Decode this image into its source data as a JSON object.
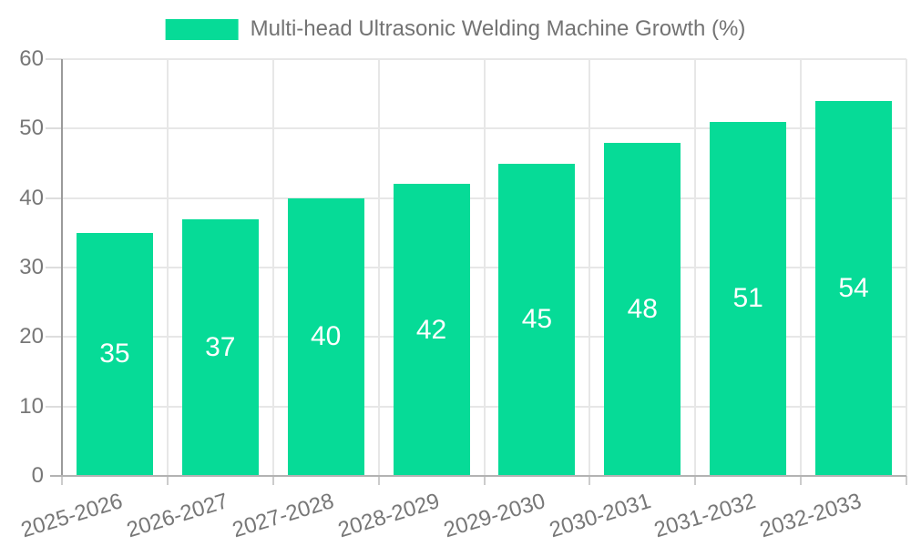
{
  "chart_data": {
    "type": "bar",
    "title": "Multi-head Ultrasonic Welding Machine Growth (%)",
    "categories": [
      "2025-2026",
      "2026-2027",
      "2027-2028",
      "2028-2029",
      "2029-2030",
      "2030-2031",
      "2031-2032",
      "2032-2033"
    ],
    "series": [
      {
        "name": "Multi-head Ultrasonic Welding Machine Growth (%)",
        "values": [
          35,
          37,
          40,
          42,
          45,
          48,
          51,
          54
        ]
      }
    ],
    "xlabel": "",
    "ylabel": "",
    "ylim": [
      0,
      60
    ],
    "yticks": [
      0,
      10,
      20,
      30,
      40,
      50,
      60
    ],
    "grid": true,
    "legend_position": "top",
    "bar_labels_visible": true,
    "colors": {
      "bar": "#06DB97",
      "bar_label": "#FFFFFF",
      "grid": "#E7E7E7",
      "axis_y_line": "#9A9A9A",
      "axis_x_line": "#B3B3B3",
      "tick_label": "#777777",
      "legend_text": "#737373",
      "background": "#FFFFFF"
    }
  }
}
